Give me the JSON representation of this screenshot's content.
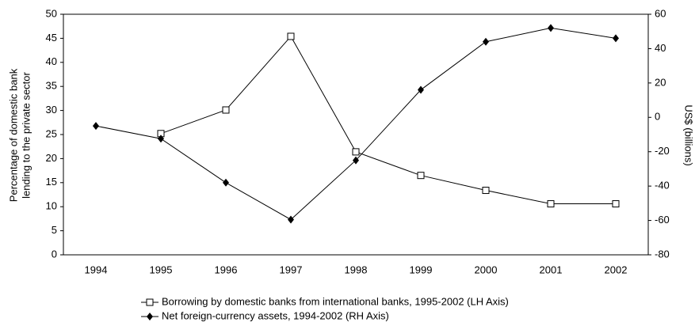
{
  "chart_data": {
    "type": "line",
    "ylabel_lines": [
      "Percentage of domestic bank",
      "lending to the private sector"
    ],
    "y2label": "US$ (billions)",
    "categories": [
      "1994",
      "1995",
      "1996",
      "1997",
      "1998",
      "1999",
      "2000",
      "2001",
      "2002"
    ],
    "series": [
      {
        "name": "Borrowing by domestic banks from international banks, 1995-2002 (LH Axis)",
        "color": "#000000",
        "marker": "square",
        "values": [
          null,
          25.2,
          30.1,
          45.4,
          21.4,
          16.5,
          13.4,
          10.6,
          10.6
        ]
      },
      {
        "name": "Net foreign-currency assets, 1994-2002 (RH Axis)",
        "color": "#000000",
        "marker": "diamond",
        "axis": "y2",
        "values": [
          -5,
          -12.4,
          -38,
          -59.5,
          -25,
          16,
          44,
          52,
          46
        ]
      }
    ],
    "ylim": [
      0,
      50
    ],
    "yticks": [
      0,
      5,
      10,
      15,
      20,
      25,
      30,
      35,
      40,
      45,
      50
    ],
    "y2lim": [
      -80,
      60
    ],
    "y2ticks": [
      -80,
      -60,
      -40,
      -20,
      0,
      20,
      40,
      60
    ],
    "grid": false
  }
}
